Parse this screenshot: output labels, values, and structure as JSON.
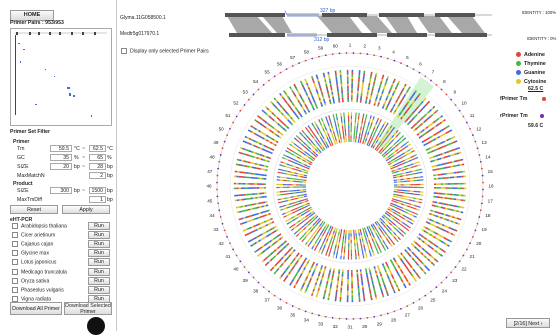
{
  "left_panel": {
    "home_label": "HOME",
    "primer_pairs_label": "Primer Pairs : 953/953",
    "filter_title": "Primer Set Filter",
    "primer_heading": "Primer",
    "tm_label": "Tm",
    "tm_min": "59.5",
    "tm_max": "62.5",
    "tm_unit": "°C",
    "gc_label": "GC",
    "gc_min": "35",
    "gc_max": "65",
    "gc_unit": "%",
    "size_label": "SIZE",
    "size_min": "20",
    "size_max": "28",
    "size_unit": "bp",
    "maxmatch_label": "MaxMatchN",
    "maxmatch_value": "2",
    "maxmatch_unit": "bp",
    "product_heading": "Product",
    "psize_label": "SIZE",
    "psize_min": "300",
    "psize_max": "1500",
    "psize_unit": "bp",
    "maxtm_label": "MaxTmDiff",
    "maxtm_value": "1",
    "maxtm_unit": "bp",
    "dash": "~",
    "reset_label": "Reset",
    "apply_label": "Apply",
    "eht_title": "eHT-PCR",
    "organisms": [
      "Arabidopsis thaliana",
      "Cicer arietinum",
      "Cajanus cajan",
      "Glycine max",
      "Lotus japonicus",
      "Medicago truncatula",
      "Oryza sativa",
      "Phaseolus vulgaris",
      "Vigna radiata"
    ],
    "run_label": "Run",
    "download_all_label": "Download All Primer",
    "download_selected_label": "Download Selected Primer"
  },
  "top_bar": {
    "gene_top": "Glyma.11G058500.1",
    "gene_bottom": "Medtr5g017970.1",
    "bp_top": "327 bp",
    "bp_bottom": "312 bp",
    "identity_top": "IDENTITY : 100%",
    "identity_bottom": "IDENTITY : 0%"
  },
  "display_only_label": "Display only selected Primer Pairs",
  "legend": {
    "adenine": "Adenine",
    "thymine": "Thymine",
    "guanine": "Guanine",
    "cytosine": "Cytosine",
    "temp": "62.5 C",
    "fprimer": "fPrimer Tm",
    "rprimer": "rPrimer Tm",
    "temp2": "59.6 C",
    "colors": {
      "adenine": "#e0443a",
      "thymine": "#48b548",
      "guanine": "#4169e1",
      "cytosine": "#e3c62a"
    }
  },
  "circle_numbers": [
    "1",
    "2",
    "3",
    "4",
    "5",
    "6",
    "7",
    "8",
    "9",
    "10",
    "11",
    "12",
    "13",
    "14",
    "15",
    "16",
    "17",
    "18",
    "19",
    "20",
    "21",
    "22",
    "23",
    "24",
    "25",
    "26",
    "27",
    "28",
    "29",
    "30",
    "31",
    "32",
    "33",
    "34",
    "35",
    "36",
    "37",
    "38",
    "39",
    "40",
    "41",
    "42",
    "43",
    "44",
    "45",
    "46",
    "47",
    "48",
    "49",
    "50",
    "51",
    "52",
    "53",
    "54",
    "55",
    "56",
    "57",
    "58",
    "59",
    "60"
  ],
  "next_label": "[2/16] Next ›"
}
